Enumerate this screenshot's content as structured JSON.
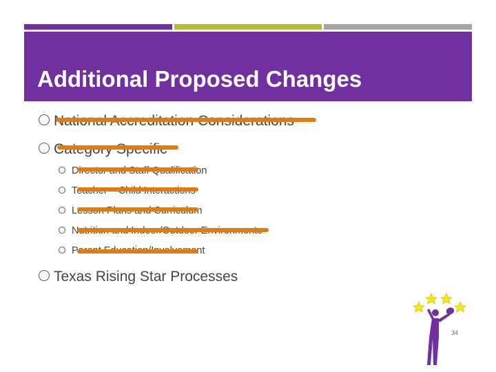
{
  "slide": {
    "title": "Additional Proposed Changes",
    "items": [
      "National Accreditation Considerations",
      "Category Specific",
      "Director and Staff Qualification",
      "Teacher – Child Interactions",
      "Lesson Plans and Curriculum",
      "Nutrition and Indoor/Outdoor Environments",
      "Parent Education/Involvement",
      "Texas Rising Star Processes"
    ],
    "page_number": "34"
  },
  "colors": {
    "title_band": "#7030a0",
    "accent_green": "#b5bd35",
    "accent_gray": "#a5a5a5",
    "strike": "#e07b10",
    "star": "#f5e61a",
    "figure": "#7030a0"
  },
  "icons": {
    "logo": "texas-rising-star-figure-icon"
  }
}
